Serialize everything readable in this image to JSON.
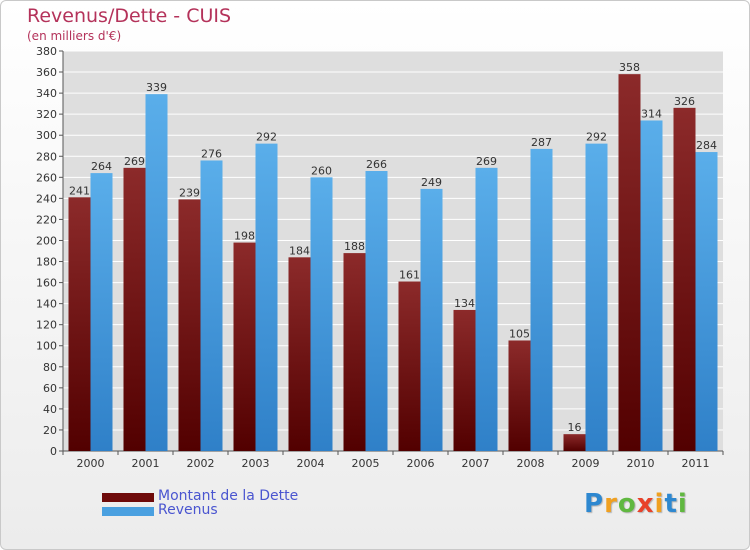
{
  "title": "Revenus/Dette - CUIS",
  "subtitle": "(en milliers d'€)",
  "logo": {
    "letters": [
      "P",
      "r",
      "o",
      "x",
      "i",
      "t",
      "i"
    ],
    "colors": [
      "#2e88d0",
      "#f0a020",
      "#60b840",
      "#e8422a",
      "#f0a020",
      "#2e88d0",
      "#60b840"
    ]
  },
  "legend": [
    {
      "label": "Montant de la Dette",
      "color": "#6e0a0a"
    },
    {
      "label": "Revenus",
      "color": "#4aa0e0"
    }
  ],
  "chart_data": {
    "type": "bar",
    "title": "Revenus/Dette - CUIS",
    "subtitle": "(en milliers d'€)",
    "categories": [
      "2000",
      "2001",
      "2002",
      "2003",
      "2004",
      "2005",
      "2006",
      "2007",
      "2008",
      "2009",
      "2010",
      "2011"
    ],
    "series": [
      {
        "name": "Montant de la Dette",
        "color": "#6e0a0a",
        "values": [
          241,
          269,
          239,
          198,
          184,
          188,
          161,
          134,
          105,
          16,
          358,
          326
        ]
      },
      {
        "name": "Revenus",
        "color": "#4aa0e0",
        "values": [
          264,
          339,
          276,
          292,
          260,
          266,
          249,
          269,
          287,
          292,
          314,
          284
        ]
      }
    ],
    "ylim": [
      0,
      380
    ],
    "ytick_step": 20,
    "grid": true,
    "legend_position": "bottom-left",
    "data_labels": true
  }
}
